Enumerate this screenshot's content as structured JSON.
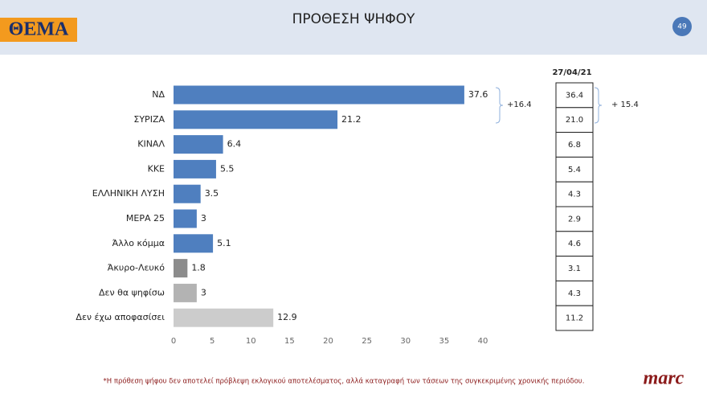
{
  "header": {
    "logo": "ΘΕΜΑ",
    "page": "49"
  },
  "chart_data": {
    "type": "hbar",
    "title": "ΠΡΟΘΕΣΗ ΨΗΦΟΥ",
    "categories": [
      "ΝΔ",
      "ΣΥΡΙΖΑ",
      "ΚΙΝΑΛ",
      "ΚΚΕ",
      "ΕΛΛΗΝΙΚΗ ΛΥΣΗ",
      "ΜΕΡΑ 25",
      "Άλλο κόμμα",
      "Άκυρο-Λευκό",
      "Δεν θα ψηφίσω",
      "Δεν έχω αποφασίσει"
    ],
    "values": [
      37.6,
      21.2,
      6.4,
      5.5,
      3.5,
      3,
      5.1,
      1.8,
      3,
      12.9
    ],
    "colors": [
      "#4f7fbf",
      "#4f7fbf",
      "#4f7fbf",
      "#4f7fbf",
      "#4f7fbf",
      "#4f7fbf",
      "#4f7fbf",
      "#8c8c8c",
      "#b3b3b3",
      "#cccccc"
    ],
    "xlim": [
      0,
      40
    ],
    "xticks": [
      0,
      5,
      10,
      15,
      20,
      25,
      30,
      35,
      40
    ],
    "grid": false,
    "annotation": "+16.4"
  },
  "comparison": {
    "date": "27/04/21",
    "values": [
      "36.4",
      "21.0",
      "6.8",
      "5.4",
      "4.3",
      "2.9",
      "4.6",
      "3.1",
      "4.3",
      "11.2"
    ],
    "annotation": "+ 15.4"
  },
  "footer": {
    "note": "*Η πρόθεση ψήφου δεν αποτελεί πρόβλεψη εκλογικού αποτελέσματος, αλλά καταγραφή των τάσεων της συγκεκριμένης χρονικής περιόδου.",
    "brand": "marc"
  }
}
